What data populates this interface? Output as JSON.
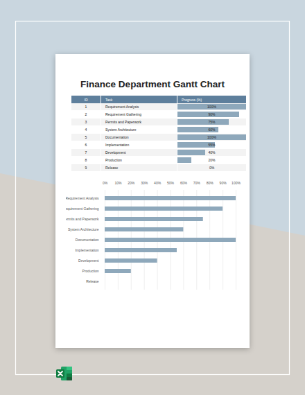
{
  "title": "Finance Department Gantt Chart",
  "table": {
    "columns": [
      "ID",
      "Task",
      "Progress (%)"
    ],
    "rows": [
      {
        "id": 1,
        "task": "Requirement Analysis",
        "progress": 100,
        "progress_label": "100%"
      },
      {
        "id": 2,
        "task": "Requirement Gathering",
        "progress": 90,
        "progress_label": "90%"
      },
      {
        "id": 3,
        "task": "Permits and Paperwork",
        "progress": 75,
        "progress_label": "75%"
      },
      {
        "id": 4,
        "task": "System Architecture",
        "progress": 60,
        "progress_label": "60%"
      },
      {
        "id": 5,
        "task": "Documentation",
        "progress": 100,
        "progress_label": "100%"
      },
      {
        "id": 6,
        "task": "Implementation",
        "progress": 55,
        "progress_label": "55%"
      },
      {
        "id": 7,
        "task": "Development",
        "progress": 40,
        "progress_label": "40%"
      },
      {
        "id": 8,
        "task": "Production",
        "progress": 20,
        "progress_label": "20%"
      },
      {
        "id": 9,
        "task": "Release",
        "progress": 0,
        "progress_label": "0%"
      }
    ],
    "color": "#8ea8bb"
  },
  "chart_data": {
    "type": "bar",
    "orientation": "horizontal",
    "categories": [
      "Requirement Analysis",
      "Requirement Gathering",
      "Permits and Paperwork",
      "System Architecture",
      "Documentation",
      "Implementation",
      "Development",
      "Production",
      "Release"
    ],
    "values": [
      100,
      90,
      75,
      60,
      100,
      55,
      40,
      20,
      0
    ],
    "color": "#8ea8bb",
    "xlim": [
      0,
      100
    ],
    "xticks": [
      {
        "value": 0,
        "label": "0%"
      },
      {
        "value": 10,
        "label": "10%"
      },
      {
        "value": 20,
        "label": "20%"
      },
      {
        "value": 30,
        "label": "30%"
      },
      {
        "value": 40,
        "label": "40%"
      },
      {
        "value": 50,
        "label": "50%"
      },
      {
        "value": 60,
        "label": "60%"
      },
      {
        "value": 70,
        "label": "70%"
      },
      {
        "value": 80,
        "label": "80%"
      },
      {
        "value": 90,
        "label": "90%"
      },
      {
        "value": 100,
        "label": "100%"
      }
    ],
    "grid": true
  }
}
